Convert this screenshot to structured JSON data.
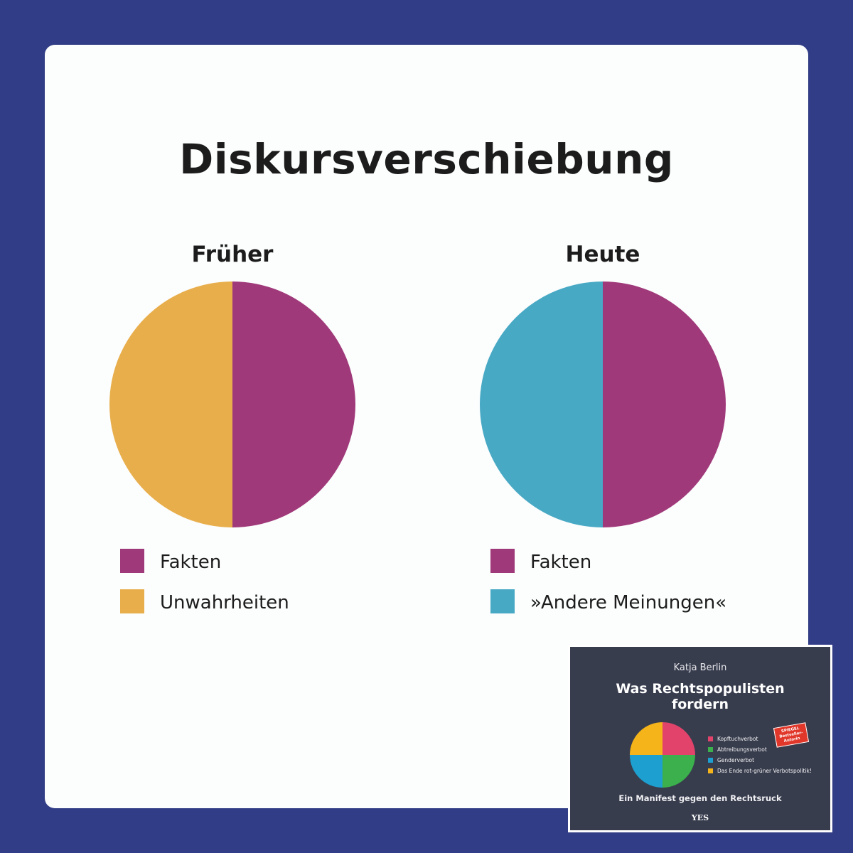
{
  "chart_data": [
    {
      "type": "pie",
      "title": "Früher",
      "categories": [
        "Fakten",
        "Unwahrheiten"
      ],
      "values": [
        50,
        50
      ],
      "colors": [
        "#a0397a",
        "#e8ae4b"
      ]
    },
    {
      "type": "pie",
      "title": "Heute",
      "categories": [
        "Fakten",
        "»Andere Meinungen«"
      ],
      "values": [
        50,
        50
      ],
      "colors": [
        "#a0397a",
        "#48a9c5"
      ]
    }
  ],
  "page": {
    "title": "Diskursverschiebung",
    "background_color": "#313d86",
    "card_color": "#fcfdfd"
  },
  "book": {
    "author": "Katja Berlin",
    "title_line1": "Was Rechtspopulisten",
    "title_line2": "fordern",
    "badge_line1": "SPIEGEL",
    "badge_line2": "Bestseller-",
    "badge_line3": "Autorin",
    "subtitle": "Ein Manifest gegen den Rechtsruck",
    "publisher": "YES",
    "chart_data": {
      "type": "pie",
      "categories": [
        "Kopftuchverbot",
        "Abtreibungsverbot",
        "Genderverbot",
        "Das Ende rot-grüner Verbotspolitik!"
      ],
      "values": [
        25,
        25,
        25,
        25
      ],
      "colors": [
        "#e2436b",
        "#3bb04c",
        "#1d9fd0",
        "#f4b41a"
      ]
    }
  }
}
